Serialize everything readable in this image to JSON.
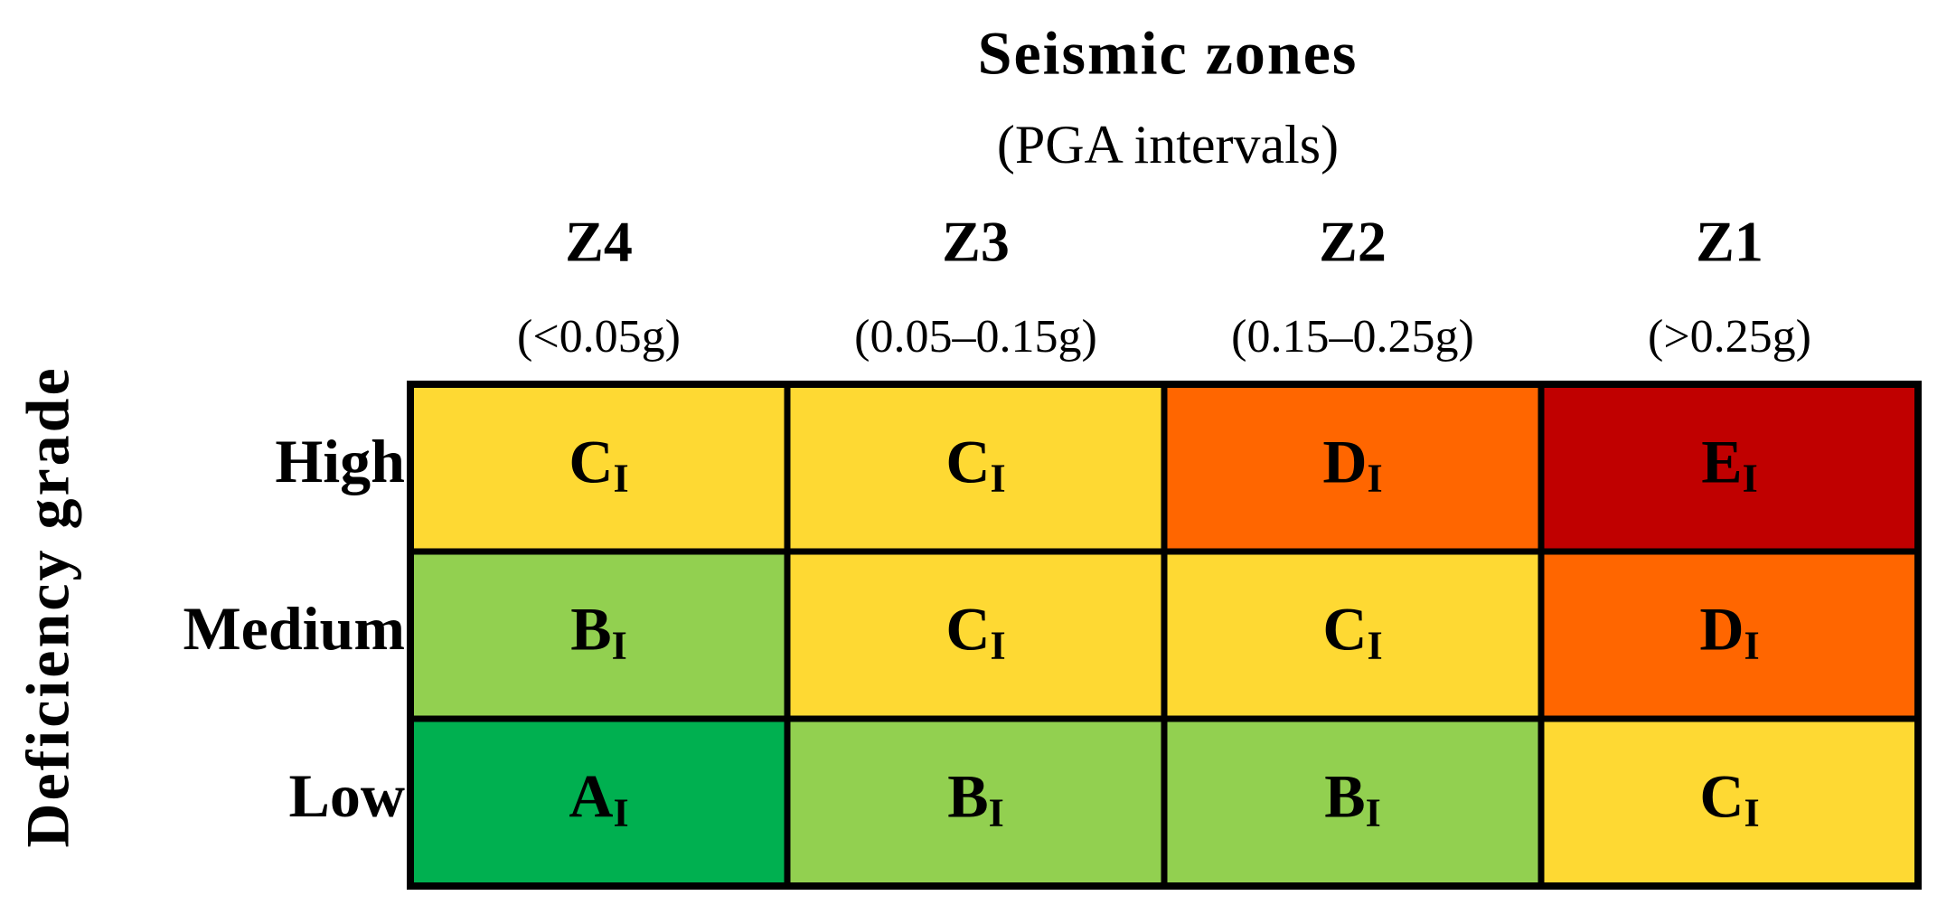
{
  "header": {
    "title": "Seismic zones",
    "subtitle": "(PGA intervals)"
  },
  "y_axis_label": "Deficiency grade",
  "columns": [
    {
      "zone": "Z4",
      "range": "(<0.05g)"
    },
    {
      "zone": "Z3",
      "range": "(0.05–0.15g)"
    },
    {
      "zone": "Z2",
      "range": "(0.15–0.25g)"
    },
    {
      "zone": "Z1",
      "range": "(>0.25g)"
    }
  ],
  "rows": [
    {
      "label": "High",
      "cells": [
        {
          "letter": "C",
          "subscript": "I",
          "color": "#fed933"
        },
        {
          "letter": "C",
          "subscript": "I",
          "color": "#fed933"
        },
        {
          "letter": "D",
          "subscript": "I",
          "color": "#ff6600"
        },
        {
          "letter": "E",
          "subscript": "I",
          "color": "#c00000"
        }
      ]
    },
    {
      "label": "Medium",
      "cells": [
        {
          "letter": "B",
          "subscript": "I",
          "color": "#92d050"
        },
        {
          "letter": "C",
          "subscript": "I",
          "color": "#fed933"
        },
        {
          "letter": "C",
          "subscript": "I",
          "color": "#fed933"
        },
        {
          "letter": "D",
          "subscript": "I",
          "color": "#ff6600"
        }
      ]
    },
    {
      "label": "Low",
      "cells": [
        {
          "letter": "A",
          "subscript": "I",
          "color": "#00b050"
        },
        {
          "letter": "B",
          "subscript": "I",
          "color": "#92d050"
        },
        {
          "letter": "B",
          "subscript": "I",
          "color": "#92d050"
        },
        {
          "letter": "C",
          "subscript": "I",
          "color": "#fed933"
        }
      ]
    }
  ]
}
